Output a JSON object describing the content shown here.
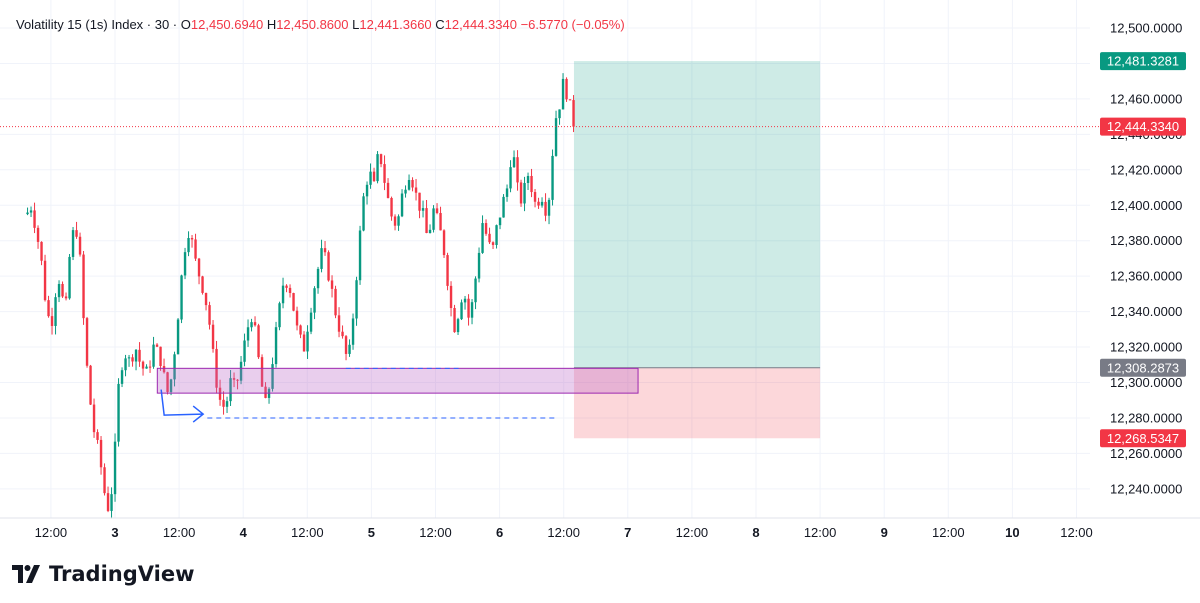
{
  "header": {
    "symbol": "Volatility 15 (1s) Index · 30 ·",
    "o_label": "O",
    "o_value": "12,450.6940",
    "h_label": "H",
    "h_value": "12,450.8600",
    "l_label": "L",
    "l_value": "12,441.3660",
    "c_label": "C",
    "c_value": "12,444.3340",
    "change": "−6.5770 (−0.05%)"
  },
  "brand": {
    "name": "TradingView",
    "logo_icon": "tradingview-logo-icon"
  },
  "colors": {
    "up": "#089981",
    "down": "#f23645",
    "grid": "#f0f3fa",
    "text": "#131722",
    "target_zone": "rgba(8,153,129,0.2)",
    "stop_zone": "rgba(242,54,69,0.2)",
    "supply_box_fill": "rgba(186,104,200,0.32)",
    "supply_box_border": "#9c27b0",
    "dashed_line": "#2962ff",
    "last_price_line": "#f23645",
    "entry_tag": "#787b86"
  },
  "chart_data": {
    "type": "candlestick",
    "symbol": "Volatility 15 (1s) Index",
    "timeframe": "30",
    "x_ticks": [
      "12:00",
      "3",
      "12:00",
      "4",
      "12:00",
      "5",
      "12:00",
      "6",
      "12:00",
      "7",
      "12:00",
      "8",
      "12:00",
      "9",
      "12:00",
      "10",
      "12:00"
    ],
    "y_ticks": [
      "12,500.0000",
      "12,480.0000",
      "12,460.0000",
      "12,440.0000",
      "12,420.0000",
      "12,400.0000",
      "12,380.0000",
      "12,360.0000",
      "12,340.0000",
      "12,320.0000",
      "12,300.0000",
      "12,280.0000",
      "12,260.0000",
      "12,240.0000"
    ],
    "y_tick_values": [
      12500,
      12480,
      12460,
      12440,
      12420,
      12400,
      12380,
      12360,
      12340,
      12320,
      12300,
      12280,
      12260,
      12240
    ],
    "ylim": [
      12222,
      12510
    ],
    "x_range_days": [
      2.3,
      10.55
    ],
    "grid": true,
    "price_path": [
      [
        2.31,
        12395
      ],
      [
        2.35,
        12400
      ],
      [
        2.38,
        12388
      ],
      [
        2.42,
        12372
      ],
      [
        2.46,
        12345
      ],
      [
        2.5,
        12330
      ],
      [
        2.53,
        12350
      ],
      [
        2.57,
        12360
      ],
      [
        2.61,
        12335
      ],
      [
        2.65,
        12375
      ],
      [
        2.69,
        12390
      ],
      [
        2.72,
        12378
      ],
      [
        2.75,
        12340
      ],
      [
        2.79,
        12300
      ],
      [
        2.83,
        12275
      ],
      [
        2.88,
        12258
      ],
      [
        2.93,
        12232
      ],
      [
        2.96,
        12228
      ],
      [
        3.0,
        12262
      ],
      [
        3.03,
        12300
      ],
      [
        3.07,
        12318
      ],
      [
        3.11,
        12312
      ],
      [
        3.16,
        12320
      ],
      [
        3.2,
        12310
      ],
      [
        3.25,
        12305
      ],
      [
        3.3,
        12320
      ],
      [
        3.35,
        12315
      ],
      [
        3.39,
        12300
      ],
      [
        3.42,
        12292
      ],
      [
        3.46,
        12315
      ],
      [
        3.5,
        12345
      ],
      [
        3.54,
        12375
      ],
      [
        3.58,
        12388
      ],
      [
        3.62,
        12370
      ],
      [
        3.66,
        12360
      ],
      [
        3.7,
        12350
      ],
      [
        3.74,
        12332
      ],
      [
        3.78,
        12305
      ],
      [
        3.82,
        12290
      ],
      [
        3.86,
        12285
      ],
      [
        3.9,
        12300
      ],
      [
        3.94,
        12296
      ],
      [
        3.98,
        12310
      ],
      [
        4.02,
        12325
      ],
      [
        4.06,
        12340
      ],
      [
        4.1,
        12325
      ],
      [
        4.14,
        12300
      ],
      [
        4.18,
        12285
      ],
      [
        4.22,
        12308
      ],
      [
        4.27,
        12335
      ],
      [
        4.32,
        12360
      ],
      [
        4.37,
        12352
      ],
      [
        4.42,
        12330
      ],
      [
        4.47,
        12318
      ],
      [
        4.52,
        12340
      ],
      [
        4.57,
        12360
      ],
      [
        4.62,
        12375
      ],
      [
        4.67,
        12360
      ],
      [
        4.72,
        12340
      ],
      [
        4.77,
        12325
      ],
      [
        4.82,
        12310
      ],
      [
        4.86,
        12340
      ],
      [
        4.9,
        12375
      ],
      [
        4.94,
        12405
      ],
      [
        4.98,
        12420
      ],
      [
        5.02,
        12410
      ],
      [
        5.06,
        12432
      ],
      [
        5.1,
        12415
      ],
      [
        5.15,
        12395
      ],
      [
        5.2,
        12388
      ],
      [
        5.25,
        12410
      ],
      [
        5.3,
        12420
      ],
      [
        5.35,
        12405
      ],
      [
        5.4,
        12395
      ],
      [
        5.44,
        12380
      ],
      [
        5.48,
        12398
      ],
      [
        5.52,
        12390
      ],
      [
        5.56,
        12378
      ],
      [
        5.6,
        12355
      ],
      [
        5.64,
        12330
      ],
      [
        5.68,
        12340
      ],
      [
        5.72,
        12355
      ],
      [
        5.75,
        12335
      ],
      [
        5.79,
        12345
      ],
      [
        5.83,
        12370
      ],
      [
        5.87,
        12392
      ],
      [
        5.9,
        12382
      ],
      [
        5.94,
        12372
      ],
      [
        5.98,
        12388
      ],
      [
        6.02,
        12400
      ],
      [
        6.06,
        12410
      ],
      [
        6.1,
        12435
      ],
      [
        6.13,
        12412
      ],
      [
        6.16,
        12402
      ],
      [
        6.2,
        12410
      ],
      [
        6.23,
        12420
      ],
      [
        6.26,
        12405
      ],
      [
        6.29,
        12398
      ],
      [
        6.32,
        12410
      ],
      [
        6.35,
        12398
      ],
      [
        6.38,
        12400
      ],
      [
        6.41,
        12428
      ],
      [
        6.44,
        12450
      ],
      [
        6.47,
        12458
      ],
      [
        6.5,
        12470
      ],
      [
        6.53,
        12462
      ],
      [
        6.56,
        12451
      ],
      [
        6.58,
        12446
      ]
    ],
    "last_price": {
      "value": 12444.334,
      "label": "12,444.3340"
    },
    "position": {
      "entry": {
        "value": 12308.2873,
        "label": "12,308.2873"
      },
      "target": {
        "value": 12481.3281,
        "label": "12,481.3281"
      },
      "stop": {
        "value": 12268.5347,
        "label": "12,268.5347"
      },
      "x_start": 6.58,
      "x_end": 8.5
    },
    "supply_box": {
      "x_start": 3.33,
      "x_end": 7.08,
      "y_top": 12308,
      "y_bottom": 12294
    },
    "dashed_lines": [
      {
        "x_start": 4.8,
        "x_end": 5.68,
        "y": 12308
      },
      {
        "x_start": 3.72,
        "x_end": 6.45,
        "y": 12280
      }
    ],
    "arrow": {
      "x_start": 3.36,
      "x_end": 3.68,
      "y_start": 12296,
      "y_end": 12285
    }
  }
}
